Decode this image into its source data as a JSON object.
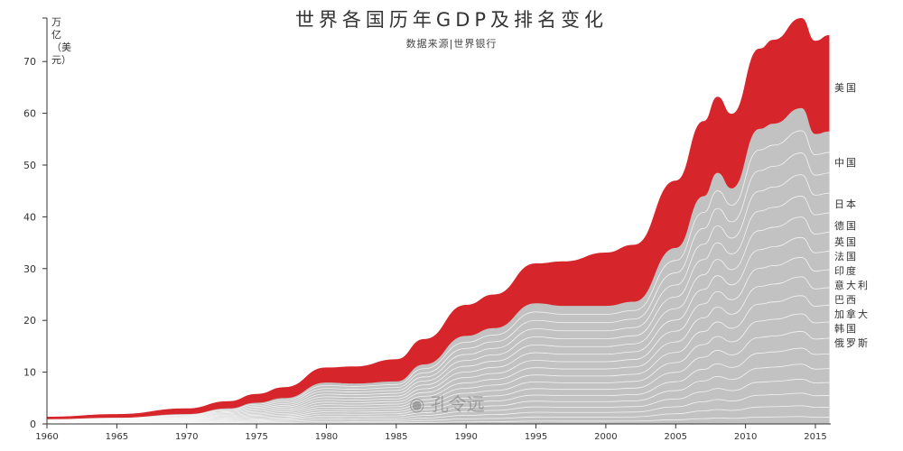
{
  "chart_data": {
    "type": "area",
    "title": "世界各国历年GDP及排名变化",
    "subtitle": "数据来源|世界银行",
    "ylabel": "万亿（美元）",
    "xlabel": "",
    "ylim": [
      0,
      77
    ],
    "xlim": [
      1960,
      2016
    ],
    "yticks": [
      0,
      10,
      20,
      30,
      40,
      50,
      60,
      70
    ],
    "xticks": [
      1960,
      1965,
      1970,
      1975,
      1980,
      1985,
      1990,
      1995,
      2000,
      2005,
      2010,
      2015
    ],
    "grid": false,
    "stacked": true,
    "x": [
      1960,
      1965,
      1970,
      1973,
      1975,
      1977,
      1980,
      1982,
      1985,
      1987,
      1990,
      1992,
      1995,
      1997,
      2000,
      2002,
      2005,
      2007,
      2008,
      2009,
      2011,
      2012,
      2014,
      2015,
      2016
    ],
    "series": [
      {
        "name": "美国",
        "color": "#d7262b",
        "values": [
          0.5,
          0.7,
          1.1,
          1.4,
          1.7,
          2.1,
          2.9,
          3.3,
          4.3,
          4.9,
          6.0,
          6.5,
          7.7,
          8.6,
          10.3,
          11.0,
          13.0,
          14.5,
          14.7,
          14.4,
          15.5,
          16.2,
          17.4,
          18.0,
          18.6
        ]
      },
      {
        "name": "",
        "color": "#c2c2c2",
        "values": [
          0.9,
          1.2,
          1.9,
          3.0,
          4.1,
          5.0,
          8.0,
          7.8,
          8.2,
          11.5,
          17.0,
          18.5,
          23.3,
          22.8,
          22.8,
          23.6,
          34.0,
          44.0,
          48.5,
          45.5,
          57.0,
          58.0,
          61.0,
          56.0,
          56.5
        ]
      }
    ],
    "end_labels": [
      "美国",
      "中国",
      "日本",
      "德国",
      "英国",
      "法国",
      "印度",
      "意大利",
      "巴西",
      "加拿大",
      "韩国",
      "俄罗斯"
    ]
  },
  "watermark": "孔令远",
  "colors": {
    "us": "#d7262b",
    "others": "#c2c2c2",
    "axis": "#333333"
  }
}
